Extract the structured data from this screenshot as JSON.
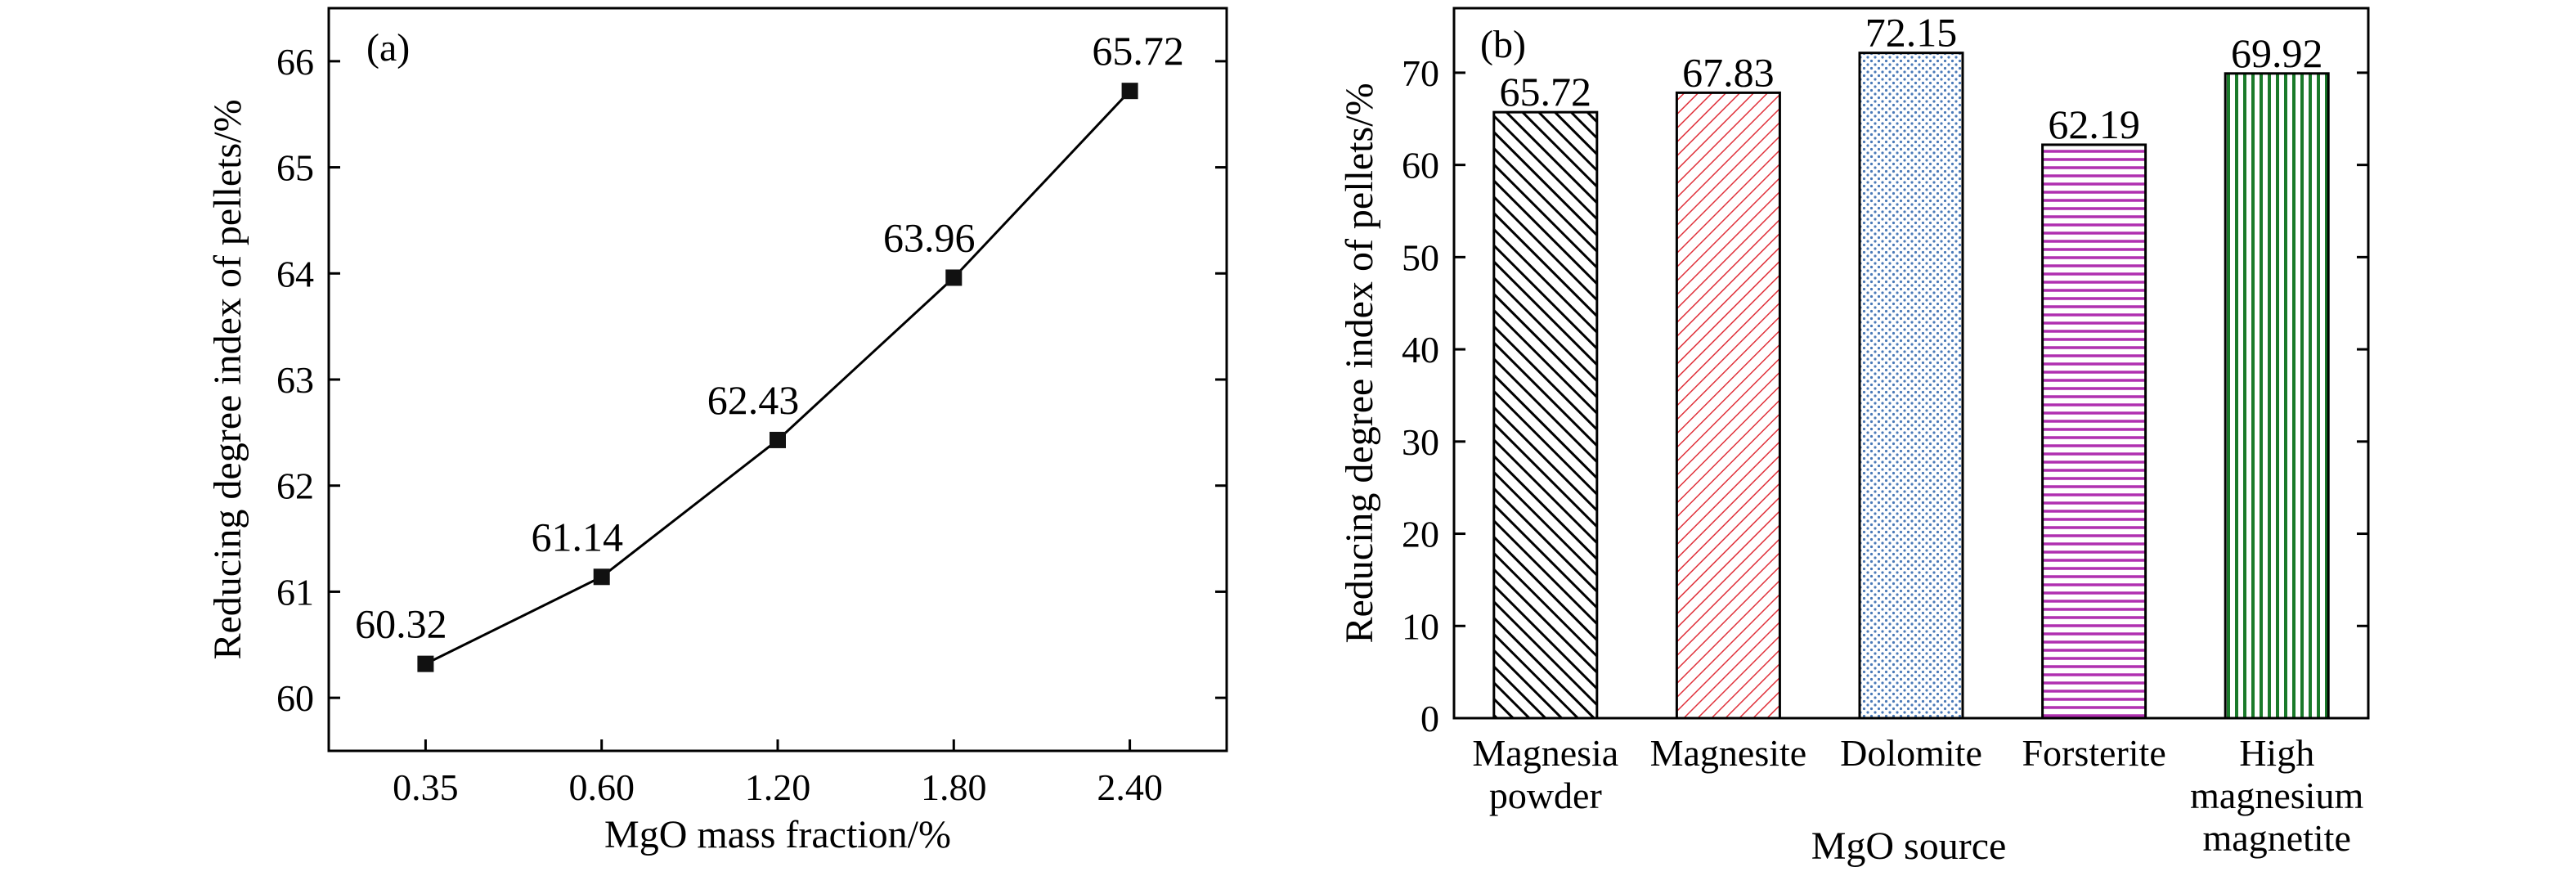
{
  "chart_data": [
    {
      "type": "line",
      "panel_label": "(a)",
      "xlabel": "MgO mass fraction/%",
      "ylabel": "Reducing degree index of pellets/%",
      "categories": [
        "0.35",
        "0.60",
        "1.20",
        "1.80",
        "2.40"
      ],
      "values": [
        60.32,
        61.14,
        62.43,
        63.96,
        65.72
      ],
      "data_labels": [
        "60.32",
        "61.14",
        "62.43",
        "63.96",
        "65.72"
      ],
      "ylim": [
        59.5,
        66.5
      ],
      "yticks": [
        "60",
        "61",
        "62",
        "63",
        "64",
        "65",
        "66"
      ],
      "marker": "square",
      "line_color": "#000000",
      "grid": false
    },
    {
      "type": "bar",
      "panel_label": "(b)",
      "xlabel": "MgO source",
      "ylabel": "Reducing degree index of pellets/%",
      "categories": [
        [
          "Magnesia",
          "powder"
        ],
        [
          "Magnesite"
        ],
        [
          "Dolomite"
        ],
        [
          "Forsterite"
        ],
        [
          "High",
          "magnesium",
          "magnetite"
        ]
      ],
      "values": [
        65.72,
        67.83,
        72.15,
        62.19,
        69.92
      ],
      "data_labels": [
        "65.72",
        "67.83",
        "72.15",
        "62.19",
        "69.92"
      ],
      "ylim": [
        0,
        77
      ],
      "yticks": [
        "0",
        "10",
        "20",
        "30",
        "40",
        "50",
        "60",
        "70"
      ],
      "bar_patterns": [
        "diag-left",
        "diag-right",
        "dots",
        "horizontal",
        "vertical"
      ],
      "bar_colors": [
        "#000000",
        "#e0303a",
        "#4a7ab8",
        "#b030b0",
        "#1a7a2a"
      ],
      "grid": false
    }
  ]
}
